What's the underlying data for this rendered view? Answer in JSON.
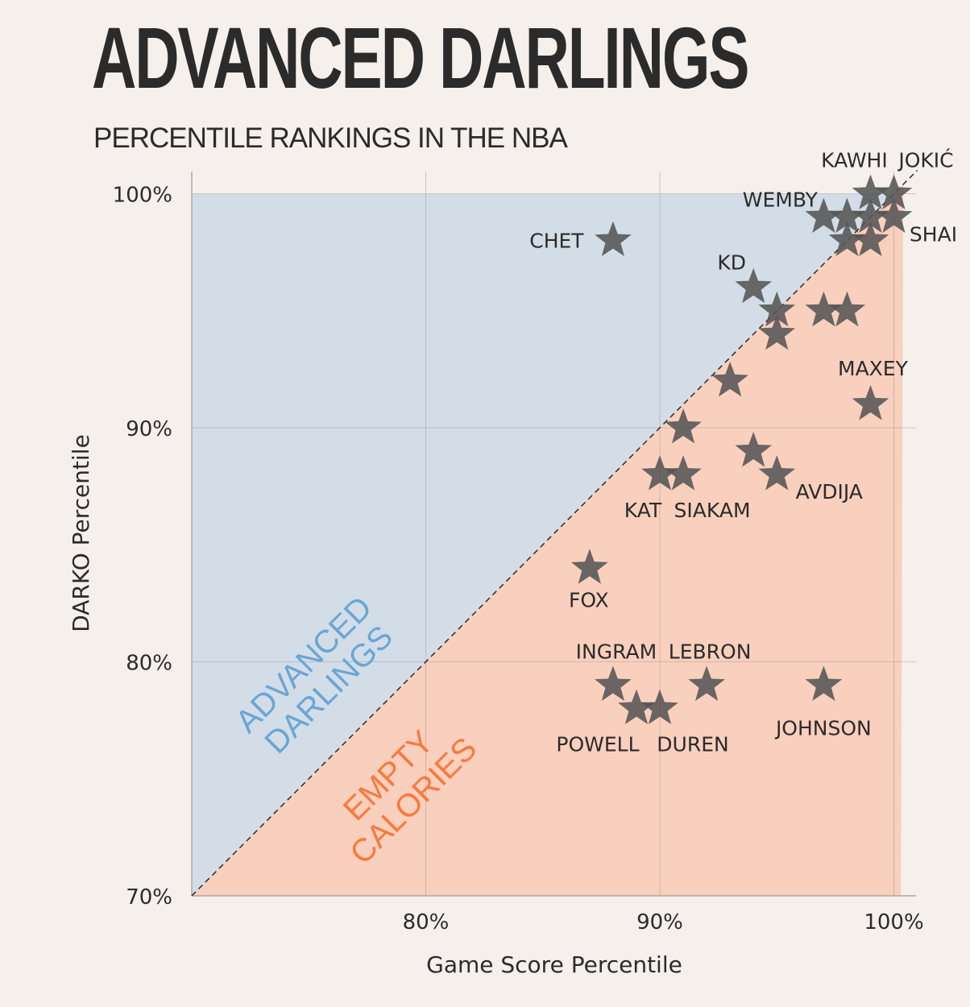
{
  "title": "ADVANCED DARLINGS",
  "subtitle": "PERCENTILE RANKINGS IN THE NBA",
  "colors": {
    "background": "#f5f0ec",
    "advanced_region": "#d3dde7",
    "empty_region": "#f9cfbe",
    "advanced_text": "#6aa6d6",
    "empty_text": "#f87a3c",
    "star": "#555555",
    "text": "#2b2b2b"
  },
  "chart_data": {
    "type": "scatter",
    "xlabel": "Game Score Percentile",
    "ylabel": "DARKO Percentile",
    "xlim": [
      70,
      101
    ],
    "ylim": [
      70,
      101
    ],
    "x_ticks": [
      {
        "value": 80,
        "label": "80%"
      },
      {
        "value": 90,
        "label": "90%"
      },
      {
        "value": 100,
        "label": "100%"
      }
    ],
    "y_ticks": [
      {
        "value": 70,
        "label": "70%"
      },
      {
        "value": 80,
        "label": "80%"
      },
      {
        "value": 90,
        "label": "90%"
      },
      {
        "value": 100,
        "label": "100%"
      }
    ],
    "grid": true,
    "reference_line": "y = x (dashed)",
    "regions": [
      {
        "name": "ADVANCED\nDARLINGS",
        "side": "above diagonal"
      },
      {
        "name": "EMPTY\nCALORIES",
        "side": "below diagonal"
      }
    ],
    "points": [
      {
        "x": 100,
        "y": 100,
        "label": "JOKIĆ"
      },
      {
        "x": 99,
        "y": 100,
        "label": "KAWHI"
      },
      {
        "x": 97,
        "y": 99,
        "label": "WEMBY"
      },
      {
        "x": 100,
        "y": 99,
        "label": "SHAI"
      },
      {
        "x": 98,
        "y": 99,
        "label": ""
      },
      {
        "x": 99,
        "y": 99,
        "label": ""
      },
      {
        "x": 98,
        "y": 98,
        "label": ""
      },
      {
        "x": 99,
        "y": 98,
        "label": ""
      },
      {
        "x": 88,
        "y": 98,
        "label": "CHET"
      },
      {
        "x": 94,
        "y": 96,
        "label": "KD"
      },
      {
        "x": 95,
        "y": 95,
        "label": ""
      },
      {
        "x": 97,
        "y": 95,
        "label": ""
      },
      {
        "x": 98,
        "y": 95,
        "label": ""
      },
      {
        "x": 95,
        "y": 94,
        "label": ""
      },
      {
        "x": 93,
        "y": 92,
        "label": ""
      },
      {
        "x": 99,
        "y": 91,
        "label": "MAXEY"
      },
      {
        "x": 91,
        "y": 90,
        "label": ""
      },
      {
        "x": 94,
        "y": 89,
        "label": ""
      },
      {
        "x": 90,
        "y": 88,
        "label": "KAT"
      },
      {
        "x": 91,
        "y": 88,
        "label": "SIAKAM"
      },
      {
        "x": 95,
        "y": 88,
        "label": "AVDIJA"
      },
      {
        "x": 87,
        "y": 84,
        "label": "FOX"
      },
      {
        "x": 88,
        "y": 79,
        "label": "INGRAM"
      },
      {
        "x": 92,
        "y": 79,
        "label": "LEBRON"
      },
      {
        "x": 97,
        "y": 79,
        "label": "JOHNSON"
      },
      {
        "x": 89,
        "y": 78,
        "label": "POWELL"
      },
      {
        "x": 90,
        "y": 78,
        "label": "DUREN"
      }
    ]
  }
}
